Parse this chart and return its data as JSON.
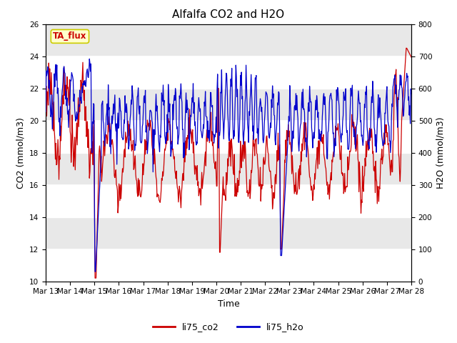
{
  "title": "Alfalfa CO2 and H2O",
  "xlabel": "Time",
  "ylabel_left": "CO2 (mmol/m3)",
  "ylabel_right": "H2O (mmol/m3)",
  "ylim_left": [
    10,
    26
  ],
  "ylim_right": [
    0,
    800
  ],
  "yticks_left": [
    10,
    12,
    14,
    16,
    18,
    20,
    22,
    24,
    26
  ],
  "yticks_right": [
    0,
    100,
    200,
    300,
    400,
    500,
    600,
    700,
    800
  ],
  "xtick_labels": [
    "Mar 13",
    "Mar 14",
    "Mar 15",
    "Mar 16",
    "Mar 17",
    "Mar 18",
    "Mar 19",
    "Mar 20",
    "Mar 21",
    "Mar 22",
    "Mar 23",
    "Mar 24",
    "Mar 25",
    "Mar 26",
    "Mar 27",
    "Mar 28"
  ],
  "color_co2": "#cc0000",
  "color_h2o": "#0000cc",
  "label_co2": "li75_co2",
  "label_h2o": "li75_h2o",
  "tag_text": "TA_flux",
  "tag_facecolor": "#ffffcc",
  "tag_edgecolor": "#cccc00",
  "background_color": "#e8e8e8",
  "grid_color": "#ffffff",
  "title_fontsize": 11,
  "axis_fontsize": 9,
  "tick_fontsize": 7.5,
  "legend_fontsize": 9
}
